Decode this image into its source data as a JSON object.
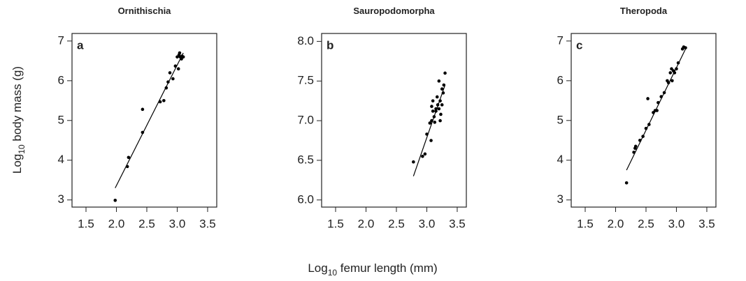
{
  "chart_data": [
    {
      "type": "scatter",
      "title": "Ornithischia",
      "panel_label": "a",
      "color": "#000000",
      "ylabel": [
        "Log",
        "10",
        " body mass (g)"
      ],
      "x": [
        1.98,
        2.18,
        2.2,
        2.43,
        2.43,
        2.72,
        2.78,
        2.82,
        2.85,
        2.88,
        2.93,
        2.97,
        3.0,
        3.02,
        3.03,
        3.05,
        3.07,
        3.08,
        3.1,
        3.04
      ],
      "y": [
        2.99,
        3.84,
        4.07,
        4.7,
        5.28,
        5.47,
        5.5,
        5.82,
        5.97,
        6.2,
        6.05,
        6.37,
        6.6,
        6.3,
        6.65,
        6.6,
        6.55,
        6.62,
        6.6,
        6.7
      ],
      "fit": {
        "x": [
          1.98,
          3.1
        ],
        "y": [
          3.3,
          6.7
        ]
      },
      "xlim": [
        1.27,
        3.65
      ],
      "ylim": [
        2.82,
        7.19
      ],
      "xticks": [
        1.5,
        {
          "value": 2,
          "label": "2.0"
        },
        2.5,
        {
          "value": 3,
          "label": "3.0"
        },
        3.5
      ],
      "yticks": [
        3,
        4,
        5,
        6,
        7
      ]
    },
    {
      "type": "scatter",
      "title": "Sauropodomorpha",
      "panel_label": "b",
      "color": "#000000",
      "xlabel": [
        "Log",
        "10",
        " femur length (mm)"
      ],
      "x": [
        2.78,
        2.93,
        2.97,
        3.0,
        3.07,
        3.05,
        3.08,
        3.1,
        3.08,
        3.1,
        3.12,
        3.13,
        3.15,
        3.17,
        3.18,
        3.2,
        3.2,
        3.22,
        3.23,
        3.25,
        3.25,
        3.27,
        3.28,
        3.3,
        3.15,
        3.22
      ],
      "y": [
        6.48,
        6.55,
        6.58,
        6.83,
        6.75,
        6.97,
        7.0,
        7.12,
        7.18,
        7.25,
        7.05,
        6.98,
        7.12,
        7.3,
        7.2,
        7.5,
        7.15,
        7.25,
        7.08,
        7.2,
        7.4,
        7.35,
        7.45,
        7.6,
        7.15,
        7.0
      ],
      "fit": {
        "x": [
          2.78,
          3.3
        ],
        "y": [
          6.3,
          7.45
        ]
      },
      "xlim": [
        1.27,
        3.65
      ],
      "ylim": [
        5.91,
        8.1
      ],
      "xticks": [
        1.5,
        {
          "value": 2,
          "label": "2.0"
        },
        2.5,
        {
          "value": 3,
          "label": "3.0"
        },
        3.5
      ],
      "yticks": [
        {
          "value": 6,
          "label": "6.0"
        },
        6.5,
        {
          "value": 7,
          "label": "7.0"
        },
        7.5,
        {
          "value": 8,
          "label": "8.0"
        }
      ]
    },
    {
      "type": "scatter",
      "title": "Theropoda",
      "panel_label": "c",
      "color": "#000000",
      "x": [
        2.18,
        2.3,
        2.32,
        2.33,
        2.4,
        2.45,
        2.5,
        2.53,
        2.55,
        2.62,
        2.65,
        2.68,
        2.7,
        2.75,
        2.8,
        2.85,
        2.87,
        2.9,
        2.92,
        2.93,
        2.95,
        3.0,
        3.03,
        3.1,
        3.12,
        3.15,
        2.97
      ],
      "y": [
        3.43,
        4.2,
        4.3,
        4.35,
        4.5,
        4.6,
        4.8,
        5.55,
        4.9,
        5.2,
        5.25,
        5.25,
        5.45,
        5.6,
        5.7,
        6.0,
        5.95,
        6.2,
        6.3,
        6.0,
        6.25,
        6.3,
        6.45,
        6.8,
        6.85,
        6.83,
        6.2
      ],
      "fit": {
        "x": [
          2.18,
          3.15
        ],
        "y": [
          3.75,
          6.8
        ]
      },
      "xlim": [
        1.27,
        3.65
      ],
      "ylim": [
        2.82,
        7.19
      ],
      "xticks": [
        1.5,
        {
          "value": 2,
          "label": "2.0"
        },
        2.5,
        {
          "value": 3,
          "label": "3.0"
        },
        3.5
      ],
      "yticks": [
        3,
        4,
        5,
        6,
        7
      ]
    }
  ]
}
